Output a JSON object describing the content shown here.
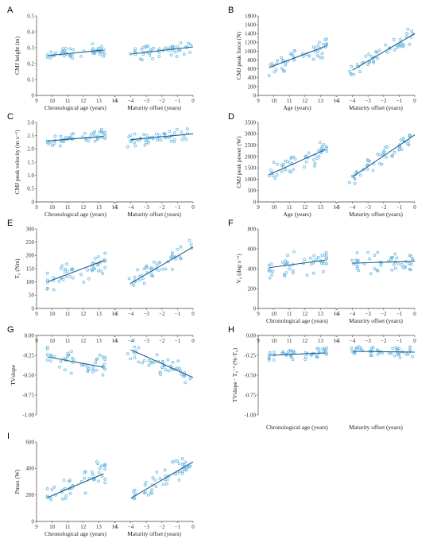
{
  "figure": {
    "panels": [
      {
        "id": "A",
        "label": "A",
        "ylabel": "CMJ height (m)",
        "ylim": [
          0,
          0.5
        ],
        "yticks": [
          "0",
          "0.1",
          "0.2",
          "0.3",
          "0.4",
          "0.5"
        ],
        "ytick_values": [
          0,
          0.1,
          0.2,
          0.3,
          0.4,
          0.5
        ],
        "sub": [
          {
            "xlabel": "Chronological age (years)",
            "xtype": "age",
            "fit": [
              [
                9.7,
                0.25
              ],
              [
                13.3,
                0.285
              ]
            ],
            "center": 0.28,
            "spread": 0.045
          },
          {
            "xlabel": "Maturity offset (years)",
            "xtype": "mat",
            "fit": [
              [
                -4,
                0.26
              ],
              [
                0,
                0.305
              ]
            ],
            "center": 0.28,
            "spread": 0.045
          }
        ]
      },
      {
        "id": "B",
        "label": "B",
        "ylabel": "CMJ peak force (N)",
        "ylim": [
          0,
          1800
        ],
        "yticks": [
          "0",
          "200",
          "400",
          "600",
          "800",
          "1000",
          "1200",
          "1400",
          "1600",
          "1800"
        ],
        "ytick_values": [
          0,
          200,
          400,
          600,
          800,
          1000,
          1200,
          1400,
          1600,
          1800
        ],
        "sub": [
          {
            "xlabel": "Age (years)",
            "xtype": "age",
            "fit": [
              [
                9.7,
                630
              ],
              [
                13.3,
                1110
              ]
            ],
            "center": 880,
            "spread": 210
          },
          {
            "xlabel": "Maturity offset (years)",
            "xtype": "mat",
            "fit": [
              [
                -4,
                570
              ],
              [
                0,
                1400
              ]
            ],
            "center": 950,
            "spread": 160
          }
        ]
      },
      {
        "id": "C",
        "label": "C",
        "ylabel": "CMJ peak velocity (m·s⁻¹)",
        "ylim": [
          0,
          3
        ],
        "yticks": [
          "0",
          "0.5",
          "1.0",
          "1.5",
          "2.0",
          "2.5",
          "3.0"
        ],
        "ytick_values": [
          0,
          0.5,
          1,
          1.5,
          2,
          2.5,
          3
        ],
        "sub": [
          {
            "xlabel": "Chronological age (years)",
            "xtype": "age",
            "fit": [
              [
                9.7,
                2.3
              ],
              [
                13.3,
                2.47
              ]
            ],
            "center": 2.4,
            "spread": 0.22
          },
          {
            "xlabel": "Maturity offset (years)",
            "xtype": "mat",
            "fit": [
              [
                -4,
                2.35
              ],
              [
                0,
                2.57
              ]
            ],
            "center": 2.45,
            "spread": 0.22
          }
        ]
      },
      {
        "id": "D",
        "label": "D",
        "ylabel": "CMJ peak power (W)",
        "ylim": [
          0,
          3500
        ],
        "yticks": [
          "0",
          "500",
          "1000",
          "1500",
          "2000",
          "2500",
          "3000",
          "3500"
        ],
        "ytick_values": [
          0,
          500,
          1000,
          1500,
          2000,
          2500,
          3000,
          3500
        ],
        "sub": [
          {
            "xlabel": "Age (years)",
            "xtype": "age",
            "fit": [
              [
                9.7,
                1200
              ],
              [
                13.3,
                2300
              ]
            ],
            "center": 1800,
            "spread": 420
          },
          {
            "xlabel": "Maturity offset (years)",
            "xtype": "mat",
            "fit": [
              [
                -4,
                1100
              ],
              [
                0,
                2950
              ]
            ],
            "center": 2000,
            "spread": 320
          }
        ]
      },
      {
        "id": "E",
        "label": "E",
        "ylabel": "T₀ (Nm)",
        "ylim": [
          0,
          300
        ],
        "yticks": [
          "0",
          "50",
          "100",
          "150",
          "200",
          "250",
          "300"
        ],
        "ytick_values": [
          0,
          50,
          100,
          150,
          200,
          250,
          300
        ],
        "sub": [
          {
            "xlabel": "",
            "xtype": "age",
            "fit": [
              [
                9.7,
                100
              ],
              [
                13.3,
                180
              ]
            ],
            "center": 140,
            "spread": 45
          },
          {
            "xlabel": "",
            "xtype": "mat",
            "fit": [
              [
                -4,
                95
              ],
              [
                0,
                232
              ]
            ],
            "center": 150,
            "spread": 35
          }
        ]
      },
      {
        "id": "F",
        "label": "F",
        "ylabel": "V₀ (deg·s⁻¹)",
        "ylim": [
          0,
          800
        ],
        "yticks": [
          "0",
          "200",
          "400",
          "600",
          "800"
        ],
        "ytick_values": [
          0,
          200,
          400,
          600,
          800
        ],
        "sub": [
          {
            "xlabel": "Chronological age (years)",
            "xtype": "age",
            "fit": [
              [
                9.7,
                410
              ],
              [
                13.3,
                485
              ]
            ],
            "center": 450,
            "spread": 110
          },
          {
            "xlabel": "Maturity offset (years)",
            "xtype": "mat",
            "fit": [
              [
                -4,
                455
              ],
              [
                0,
                475
              ]
            ],
            "center": 460,
            "spread": 100
          }
        ]
      },
      {
        "id": "G",
        "label": "G",
        "ylabel": "TVslope",
        "ylim": [
          -1,
          0
        ],
        "yticks": [
          "-1.00",
          "-0.75",
          "-0.50",
          "-0.25",
          "0.00"
        ],
        "ytick_values": [
          -1,
          -0.75,
          -0.5,
          -0.25,
          0
        ],
        "sub": [
          {
            "xlabel": "",
            "xtype": "age",
            "fit": [
              [
                9.7,
                -0.27
              ],
              [
                13.3,
                -0.4
              ]
            ],
            "center": -0.33,
            "spread": 0.13
          },
          {
            "xlabel": "",
            "xtype": "mat",
            "fit": [
              [
                -4,
                -0.18
              ],
              [
                0,
                -0.53
              ]
            ],
            "center": -0.35,
            "spread": 0.12
          }
        ]
      },
      {
        "id": "H",
        "label": "H",
        "ylabel": "TVslope · T₀⁻¹ (%·T₀)",
        "ylim": [
          -1,
          0
        ],
        "yticks": [
          "-1.00",
          "-0.75",
          "-0.50",
          "-0.25",
          "0.00"
        ],
        "ytick_values": [
          -1,
          -0.75,
          -0.5,
          -0.25,
          0
        ],
        "sub": [
          {
            "xlabel": "Chronological age (years)",
            "xtype": "age",
            "fit": [
              [
                9.7,
                -0.25
              ],
              [
                13.3,
                -0.22
              ]
            ],
            "center": -0.23,
            "spread": 0.06
          },
          {
            "xlabel": "Maturity offset (years)",
            "xtype": "mat",
            "fit": [
              [
                -4,
                -0.2
              ],
              [
                0,
                -0.21
              ]
            ],
            "center": -0.2,
            "spread": 0.06
          }
        ]
      },
      {
        "id": "I",
        "label": "I",
        "ylabel": "Pmax (W)",
        "ylim": [
          0,
          600
        ],
        "yticks": [
          "0",
          "200",
          "400",
          "600"
        ],
        "ytick_values": [
          0,
          200,
          400,
          600
        ],
        "sub": [
          {
            "xlabel": "Chronological age (years)",
            "xtype": "age",
            "fit": [
              [
                9.7,
                180
              ],
              [
                13.3,
                360
              ]
            ],
            "center": 270,
            "spread": 90
          },
          {
            "xlabel": "Maturity offset (years)",
            "xtype": "mat",
            "fit": [
              [
                -4,
                175
              ],
              [
                0,
                450
              ]
            ],
            "center": 300,
            "spread": 75
          }
        ]
      }
    ],
    "age_axis": {
      "ticks": [
        "9",
        "10",
        "11",
        "12",
        "13",
        "14"
      ],
      "values": [
        9,
        10,
        11,
        12,
        13,
        14
      ]
    },
    "maturity_axis": {
      "ticks": [
        "−5",
        "−4",
        "−3",
        "−2",
        "−1",
        "0"
      ],
      "values": [
        -5,
        -4,
        -3,
        -2,
        -1,
        0
      ]
    },
    "point_color": "#6cb8e0",
    "line_color": "#1a5f8c"
  },
  "chart_data": {
    "type": "scatter",
    "panels": [
      "A",
      "B",
      "C",
      "D",
      "E",
      "F",
      "G",
      "H",
      "I"
    ],
    "x_ranges": {
      "chronological_age": [
        9,
        14
      ],
      "maturity_offset": [
        -5,
        0
      ]
    },
    "trend_lines": {
      "A": {
        "age": [
          [
            9.7,
            0.25
          ],
          [
            13.3,
            0.285
          ]
        ],
        "maturity": [
          [
            -4,
            0.26
          ],
          [
            0,
            0.305
          ]
        ]
      },
      "B": {
        "age": [
          [
            9.7,
            630
          ],
          [
            13.3,
            1110
          ]
        ],
        "maturity": [
          [
            -4,
            570
          ],
          [
            0,
            1400
          ]
        ]
      },
      "C": {
        "age": [
          [
            9.7,
            2.3
          ],
          [
            13.3,
            2.47
          ]
        ],
        "maturity": [
          [
            -4,
            2.35
          ],
          [
            0,
            2.57
          ]
        ]
      },
      "D": {
        "age": [
          [
            9.7,
            1200
          ],
          [
            13.3,
            2300
          ]
        ],
        "maturity": [
          [
            -4,
            1100
          ],
          [
            0,
            2950
          ]
        ]
      },
      "E": {
        "age": [
          [
            9.7,
            100
          ],
          [
            13.3,
            180
          ]
        ],
        "maturity": [
          [
            -4,
            95
          ],
          [
            0,
            232
          ]
        ]
      },
      "F": {
        "age": [
          [
            9.7,
            410
          ],
          [
            13.3,
            485
          ]
        ],
        "maturity": [
          [
            -4,
            455
          ],
          [
            0,
            475
          ]
        ]
      },
      "G": {
        "age": [
          [
            9.7,
            -0.27
          ],
          [
            13.3,
            -0.4
          ]
        ],
        "maturity": [
          [
            -4,
            -0.18
          ],
          [
            0,
            -0.53
          ]
        ]
      },
      "H": {
        "age": [
          [
            9.7,
            -0.25
          ],
          [
            13.3,
            -0.22
          ]
        ],
        "maturity": [
          [
            -4,
            -0.2
          ],
          [
            0,
            -0.21
          ]
        ]
      },
      "I": {
        "age": [
          [
            9.7,
            180
          ],
          [
            13.3,
            360
          ]
        ],
        "maturity": [
          [
            -4,
            175
          ],
          [
            0,
            450
          ]
        ]
      }
    }
  }
}
